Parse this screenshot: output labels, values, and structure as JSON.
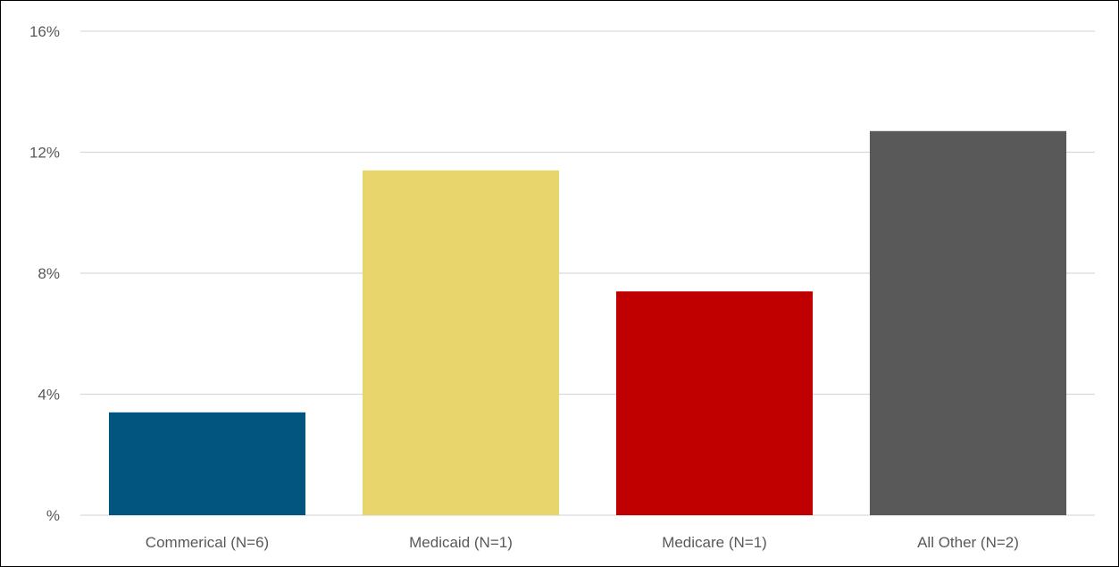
{
  "chart_data": {
    "type": "bar",
    "title": "",
    "xlabel": "",
    "ylabel": "",
    "categories": [
      "Commerical (N=6)",
      "Medicaid (N=1)",
      "Medicare (N=1)",
      "All Other (N=2)"
    ],
    "values": [
      3.4,
      11.4,
      7.4,
      12.7
    ],
    "colors": [
      "#02557f",
      "#e8d56b",
      "#c00000",
      "#595959"
    ],
    "ylim": [
      0,
      16
    ],
    "yticks": [
      0,
      4,
      8,
      12,
      16
    ],
    "ytick_labels": [
      "%",
      "4%",
      "8%",
      "12%",
      "16%"
    ],
    "grid": true,
    "legend": "none"
  }
}
